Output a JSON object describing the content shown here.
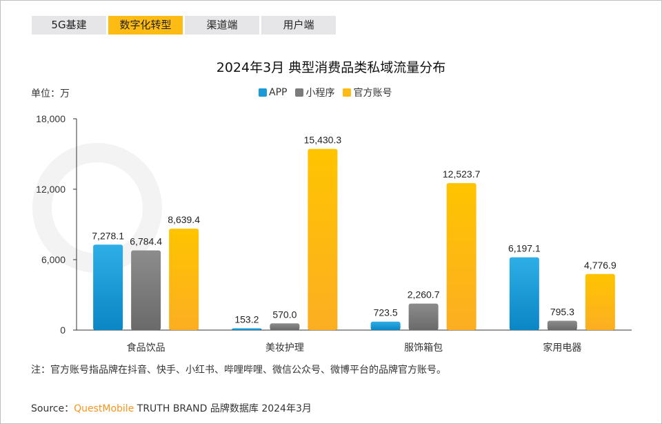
{
  "tabs": [
    {
      "label": "5G基建",
      "active": false
    },
    {
      "label": "数字化转型",
      "active": true
    },
    {
      "label": "渠道端",
      "active": false
    },
    {
      "label": "用户端",
      "active": false
    }
  ],
  "watermark": "QUEST MOBILE",
  "unit_label": "单位：万",
  "note": "注：官方账号指品牌在抖音、快手、小红书、哔哩哔哩、微信公众号、微博平台的品牌官方账号。",
  "source": {
    "prefix": "Source：",
    "brand": "QuestMobile",
    "rest": " TRUTH BRAND 品牌数据库 2024年3月"
  },
  "chart_data": {
    "type": "bar",
    "title": "2024年3月 典型消费品类私域流量分布",
    "categories": [
      "食品饮品",
      "美妆护理",
      "服饰箱包",
      "家用电器"
    ],
    "series": [
      {
        "name": "APP",
        "color": "#1a9ad6",
        "values": [
          7278.1,
          153.2,
          723.5,
          6197.1
        ],
        "labels": [
          "7,278.1",
          "153.2",
          "723.5",
          "6,197.1"
        ]
      },
      {
        "name": "小程序",
        "color": "#7b7b7b",
        "values": [
          6784.4,
          570.0,
          2260.7,
          795.3
        ],
        "labels": [
          "6,784.4",
          "570.0",
          "2,260.7",
          "795.3"
        ]
      },
      {
        "name": "官方账号",
        "color": "#fdbb14",
        "values": [
          8639.4,
          15430.3,
          12523.7,
          4776.9
        ],
        "labels": [
          "8,639.4",
          "15,430.3",
          "12,523.7",
          "4,776.9"
        ]
      }
    ],
    "ylim": [
      0,
      18000
    ],
    "yticks": [
      0,
      6000,
      12000,
      18000
    ],
    "ytick_labels": [
      "0",
      "6,000",
      "12,000",
      "18,000"
    ],
    "grid": false,
    "legend": "top-center"
  }
}
